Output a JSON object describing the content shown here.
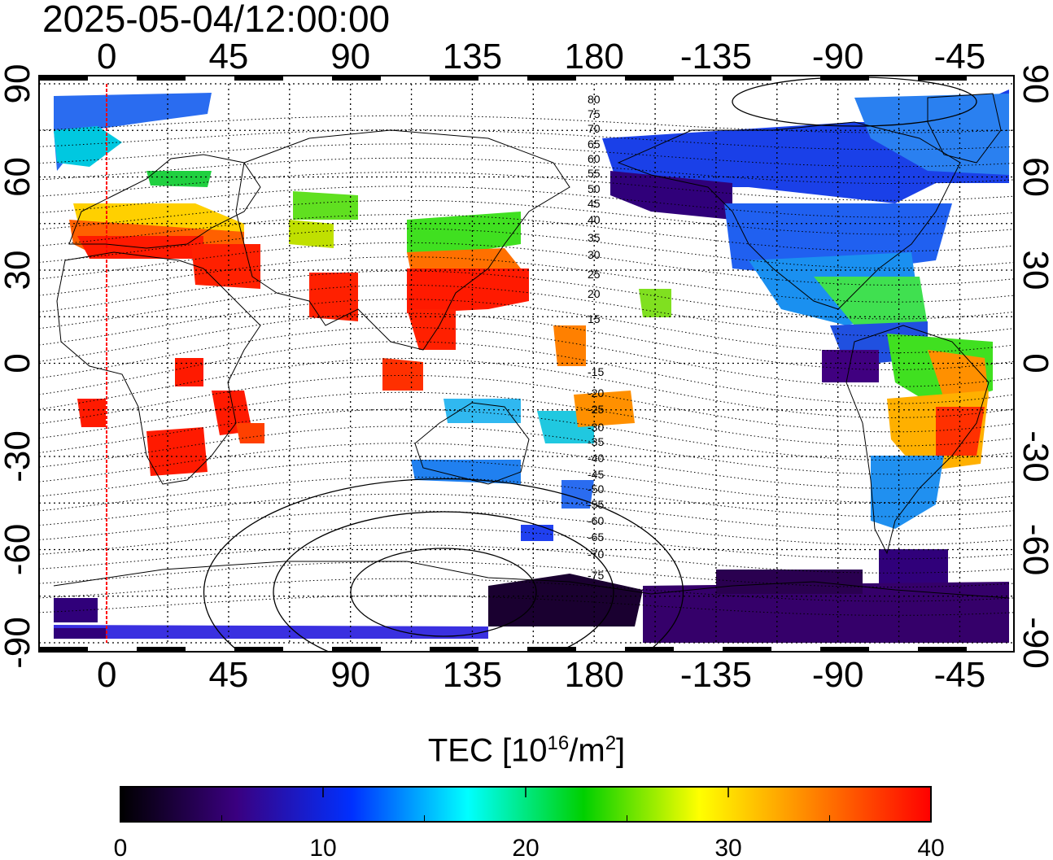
{
  "timestamp": "2025-05-04/12:00:00",
  "lon_ticks": [
    "0",
    "45",
    "90",
    "135",
    "180",
    "-135",
    "-90",
    "-45"
  ],
  "lat_ticks": [
    "90",
    "60",
    "30",
    "0",
    "-30",
    "-60",
    "-90"
  ],
  "magnetic_lat_labels": {
    "north": [
      "80",
      "75",
      "70",
      "65",
      "60",
      "55",
      "50",
      "45",
      "40",
      "35",
      "30",
      "25",
      "20",
      "15"
    ],
    "south": [
      "-15",
      "-20",
      "-25",
      "-30",
      "-35",
      "-40",
      "-45",
      "-50",
      "-55",
      "-60",
      "-65",
      "-70",
      "-75"
    ]
  },
  "colorbar": {
    "label_prefix": "TEC  [10",
    "label_exp": "16",
    "label_mid": "/m",
    "label_exp2": "2",
    "label_suffix": "]",
    "ticks": [
      "0",
      "10",
      "20",
      "30",
      "40"
    ],
    "range": [
      0,
      40
    ],
    "colors": [
      "#000000",
      "#3a0080",
      "#0030ff",
      "#00ffff",
      "#00d000",
      "#ffff00",
      "#ff8000",
      "#ff0000"
    ]
  },
  "map": {
    "projection": "equirectangular",
    "lon_range": [
      -25,
      335
    ],
    "lat_range": [
      -90,
      90
    ],
    "grid": true,
    "reference_meridian_color": "#ff0000",
    "reference_meridian_lon": 0
  }
}
